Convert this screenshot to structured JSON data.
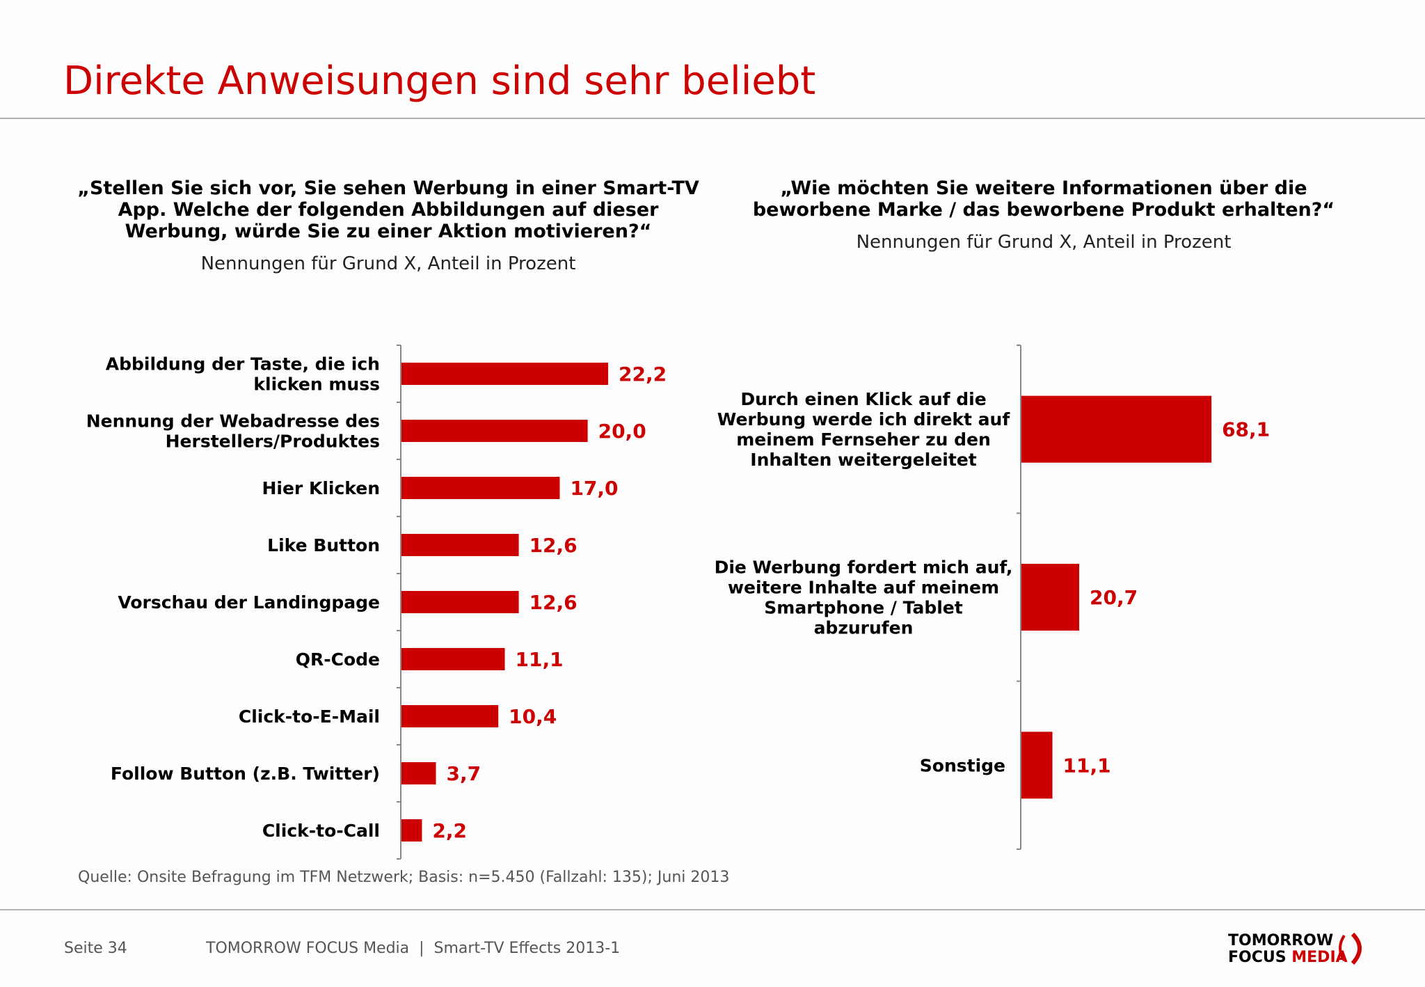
{
  "title": "Direkte Anweisungen sind sehr beliebt",
  "chart_data": [
    {
      "type": "bar",
      "orientation": "horizontal",
      "title": "„Stellen Sie sich vor, Sie sehen Werbung in einer Smart-TV App. Welche der folgenden Abbildungen auf dieser Werbung, würde Sie zu einer Aktion motivieren?“",
      "title_lines": [
        "„Stellen Sie sich vor, Sie sehen Werbung in einer Smart-TV",
        "App. Welche der folgenden Abbildungen auf dieser",
        "Werbung, würde Sie zu einer Aktion motivieren?“"
      ],
      "subtitle": "Nennungen für Grund X, Anteil in Prozent",
      "categories": [
        [
          "Abbildung der Taste, die ich",
          "klicken muss"
        ],
        [
          "Nennung der Webadresse des",
          "Herstellers/Produktes"
        ],
        [
          "Hier Klicken"
        ],
        [
          "Like Button"
        ],
        [
          "Vorschau der Landingpage"
        ],
        [
          "QR-Code"
        ],
        [
          "Click-to-E-Mail"
        ],
        [
          "Follow Button (z.B. Twitter)"
        ],
        [
          "Click-to-Call"
        ]
      ],
      "values": [
        22.2,
        20.0,
        17.0,
        12.6,
        12.6,
        11.1,
        10.4,
        3.7,
        2.2
      ],
      "value_labels": [
        "22,2",
        "20,0",
        "17,0",
        "12,6",
        "12,6",
        "11,1",
        "10,4",
        "3,7",
        "2,2"
      ],
      "color": "#cc0000",
      "grid": false
    },
    {
      "type": "bar",
      "orientation": "horizontal",
      "title": "„Wie möchten Sie weitere Informationen über die beworbene Marke / das beworbene Produkt erhalten?“",
      "title_lines": [
        "„Wie möchten Sie weitere Informationen über die",
        "beworbene Marke / das beworbene Produkt erhalten?“"
      ],
      "subtitle": "Nennungen für Grund X, Anteil in Prozent",
      "categories": [
        [
          "Durch einen Klick auf die",
          "Werbung werde ich direkt auf",
          "meinem Fernseher zu den",
          "Inhalten weitergeleitet"
        ],
        [
          "Die Werbung fordert mich auf,",
          "weitere Inhalte auf meinem",
          "Smartphone / Tablet",
          "abzurufen"
        ],
        [
          "Sonstige"
        ]
      ],
      "values": [
        68.1,
        20.7,
        11.1
      ],
      "value_labels": [
        "68,1",
        "20,7",
        "11,1"
      ],
      "color": "#cc0000",
      "grid": false
    }
  ],
  "source": "Quelle: Onsite Befragung im TFM Netzwerk; Basis: n=5.450 (Fallzahl: 135); Juni 2013",
  "footer": {
    "page": "Seite 34",
    "company": "TOMORROW FOCUS Media  |  Smart-TV Effects 2013-1"
  },
  "logo": {
    "line1": "TOMORROW",
    "line2a": "FOCUS",
    "line2b": "MEDIA"
  }
}
